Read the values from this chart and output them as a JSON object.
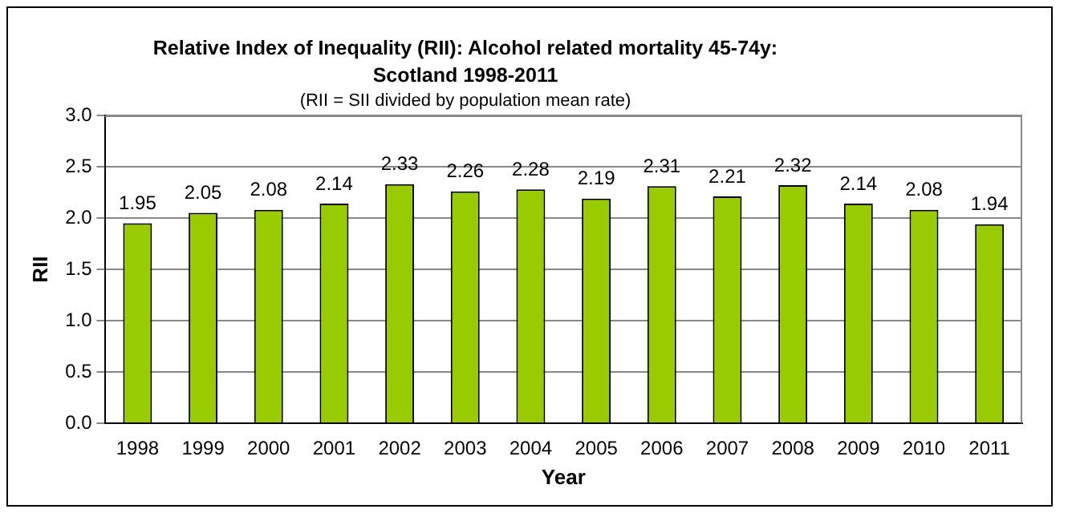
{
  "chart_data": {
    "type": "bar",
    "title": "Relative Index of Inequality (RII): Alcohol related mortality 45-74y: Scotland 1998-2011",
    "subtitle": "(RII = SII divided by population mean rate)",
    "xlabel": "Year",
    "ylabel": "RII",
    "categories": [
      "1998",
      "1999",
      "2000",
      "2001",
      "2002",
      "2003",
      "2004",
      "2005",
      "2006",
      "2007",
      "2008",
      "2009",
      "2010",
      "2011"
    ],
    "values": [
      1.95,
      2.05,
      2.08,
      2.14,
      2.33,
      2.26,
      2.28,
      2.19,
      2.31,
      2.21,
      2.32,
      2.14,
      2.08,
      1.94
    ],
    "color": "#99cc00",
    "ylim": [
      0,
      3
    ],
    "yticks": [
      {
        "value": 0,
        "label": "0.0"
      },
      {
        "value": 0.5,
        "label": "0.5"
      },
      {
        "value": 1,
        "label": "1.0"
      },
      {
        "value": 1.5,
        "label": "1.5"
      },
      {
        "value": 2,
        "label": "2.0"
      },
      {
        "value": 2.5,
        "label": "2.5"
      },
      {
        "value": 3,
        "label": "3.0"
      }
    ],
    "grid": "y",
    "data_labels": true
  }
}
